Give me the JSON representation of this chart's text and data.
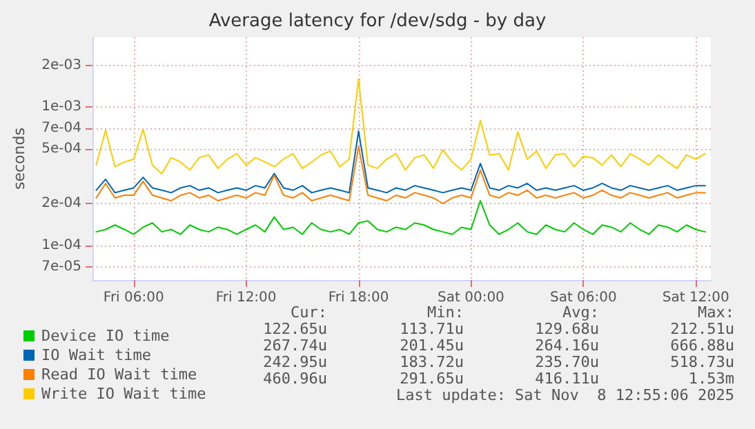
{
  "chart_data": {
    "type": "line",
    "title": "Average latency for /dev/sdg - by day",
    "ylabel": "seconds",
    "log": "y",
    "grid": true,
    "legend": "bottom left",
    "x": [
      "2025-11-07T04:00",
      "2025-11-07T04:30",
      "2025-11-07T05:00",
      "2025-11-07T05:30",
      "2025-11-07T06:00",
      "2025-11-07T06:30",
      "2025-11-07T07:00",
      "2025-11-07T07:30",
      "2025-11-07T08:00",
      "2025-11-07T08:30",
      "2025-11-07T09:00",
      "2025-11-07T09:30",
      "2025-11-07T10:00",
      "2025-11-07T10:30",
      "2025-11-07T11:00",
      "2025-11-07T11:30",
      "2025-11-07T12:00",
      "2025-11-07T12:30",
      "2025-11-07T13:00",
      "2025-11-07T13:30",
      "2025-11-07T14:00",
      "2025-11-07T14:30",
      "2025-11-07T15:00",
      "2025-11-07T15:30",
      "2025-11-07T16:00",
      "2025-11-07T16:30",
      "2025-11-07T17:00",
      "2025-11-07T17:30",
      "2025-11-07T18:00",
      "2025-11-07T18:30",
      "2025-11-07T19:00",
      "2025-11-07T19:30",
      "2025-11-07T20:00",
      "2025-11-07T20:30",
      "2025-11-07T21:00",
      "2025-11-07T21:30",
      "2025-11-07T22:00",
      "2025-11-07T22:30",
      "2025-11-07T23:00",
      "2025-11-07T23:30",
      "2025-11-08T00:00",
      "2025-11-08T00:30",
      "2025-11-08T01:00",
      "2025-11-08T01:30",
      "2025-11-08T02:00",
      "2025-11-08T02:30",
      "2025-11-08T03:00",
      "2025-11-08T03:30",
      "2025-11-08T04:00",
      "2025-11-08T04:30",
      "2025-11-08T05:00",
      "2025-11-08T05:30",
      "2025-11-08T06:00",
      "2025-11-08T06:30",
      "2025-11-08T07:00",
      "2025-11-08T07:30",
      "2025-11-08T08:00",
      "2025-11-08T08:30",
      "2025-11-08T09:00",
      "2025-11-08T09:30",
      "2025-11-08T10:00",
      "2025-11-08T10:30",
      "2025-11-08T11:00",
      "2025-11-08T11:30",
      "2025-11-08T12:00",
      "2025-11-08T12:30"
    ],
    "xlim": [
      "2025-11-07T03:48",
      "2025-11-08T12:48"
    ],
    "xticks": [
      {
        "value": "2025-11-07T06:00",
        "label": "Fri 06:00"
      },
      {
        "value": "2025-11-07T12:00",
        "label": "Fri 12:00"
      },
      {
        "value": "2025-11-07T18:00",
        "label": "Fri 18:00"
      },
      {
        "value": "2025-11-08T00:00",
        "label": "Sat 00:00"
      },
      {
        "value": "2025-11-08T06:00",
        "label": "Sat 06:00"
      },
      {
        "value": "2025-11-08T12:00",
        "label": "Sat 12:00"
      }
    ],
    "ylim": [
      5.6e-05,
      0.0032
    ],
    "yticks": [
      {
        "value": 7e-05,
        "label": "7e-05"
      },
      {
        "value": 0.0001,
        "label": "1e-04"
      },
      {
        "value": 0.0002,
        "label": "2e-04"
      },
      {
        "value": 0.0005,
        "label": "5e-04"
      },
      {
        "value": 0.0007,
        "label": "7e-04"
      },
      {
        "value": 0.001,
        "label": "1e-03"
      },
      {
        "value": 0.002,
        "label": "2e-03"
      }
    ],
    "series": [
      {
        "name": "Device IO time",
        "color": "#00cc00",
        "values": [
          0.000125,
          0.00013,
          0.00014,
          0.00013,
          0.00012,
          0.000135,
          0.000145,
          0.000125,
          0.00013,
          0.00012,
          0.00014,
          0.00013,
          0.000125,
          0.000135,
          0.00013,
          0.00012,
          0.00013,
          0.00014,
          0.000125,
          0.00016,
          0.00013,
          0.000135,
          0.00012,
          0.000145,
          0.00013,
          0.000125,
          0.00013,
          0.00012,
          0.000145,
          0.00015,
          0.00013,
          0.000125,
          0.000135,
          0.00013,
          0.000145,
          0.00014,
          0.00013,
          0.000125,
          0.00012,
          0.000135,
          0.00013,
          0.00021,
          0.00014,
          0.00012,
          0.00013,
          0.000145,
          0.000125,
          0.00012,
          0.00014,
          0.00013,
          0.000125,
          0.000145,
          0.00013,
          0.00012,
          0.00014,
          0.000135,
          0.000125,
          0.000145,
          0.00013,
          0.00012,
          0.00014,
          0.000135,
          0.000125,
          0.00014,
          0.00013,
          0.000125
        ]
      },
      {
        "name": "IO Wait time",
        "color": "#0066b3",
        "values": [
          0.00025,
          0.0003,
          0.00024,
          0.00025,
          0.00026,
          0.00031,
          0.00026,
          0.00025,
          0.00024,
          0.00026,
          0.00027,
          0.00025,
          0.00026,
          0.00024,
          0.00025,
          0.00026,
          0.00025,
          0.00027,
          0.00026,
          0.00033,
          0.00026,
          0.00025,
          0.00027,
          0.00024,
          0.00025,
          0.00026,
          0.00025,
          0.00024,
          0.00067,
          0.00026,
          0.00025,
          0.00024,
          0.00026,
          0.00025,
          0.00027,
          0.00026,
          0.00025,
          0.00024,
          0.00025,
          0.00026,
          0.00025,
          0.00039,
          0.00026,
          0.00025,
          0.00027,
          0.00026,
          0.00028,
          0.00025,
          0.00026,
          0.00025,
          0.00026,
          0.00027,
          0.00025,
          0.00026,
          0.00028,
          0.00026,
          0.00025,
          0.00027,
          0.00026,
          0.00025,
          0.00026,
          0.00027,
          0.00025,
          0.00026,
          0.00027,
          0.00027
        ]
      },
      {
        "name": "Read IO Wait time",
        "color": "#ff8000",
        "values": [
          0.00022,
          0.00028,
          0.00022,
          0.00023,
          0.00023,
          0.00029,
          0.00023,
          0.00022,
          0.00021,
          0.00023,
          0.00024,
          0.00022,
          0.00023,
          0.00021,
          0.00022,
          0.00023,
          0.00022,
          0.00024,
          0.00023,
          0.00032,
          0.00023,
          0.00022,
          0.00024,
          0.00021,
          0.00022,
          0.00023,
          0.00022,
          0.00021,
          0.00052,
          0.00023,
          0.00022,
          0.00021,
          0.00023,
          0.00022,
          0.00024,
          0.00023,
          0.00022,
          0.0002,
          0.00022,
          0.00023,
          0.00022,
          0.00035,
          0.00023,
          0.00022,
          0.00024,
          0.00023,
          0.00025,
          0.00022,
          0.00023,
          0.00022,
          0.00023,
          0.00024,
          0.00022,
          0.00023,
          0.00025,
          0.00023,
          0.00022,
          0.00024,
          0.00023,
          0.00022,
          0.00023,
          0.00024,
          0.00022,
          0.00023,
          0.00024,
          0.00024
        ]
      },
      {
        "name": "Write IO Wait time",
        "color": "#ffcc00",
        "values": [
          0.00038,
          0.00068,
          0.00037,
          0.0004,
          0.00042,
          0.00069,
          0.00038,
          0.00033,
          0.00043,
          0.0004,
          0.00035,
          0.00043,
          0.00045,
          0.00036,
          0.00042,
          0.00046,
          0.00038,
          0.00043,
          0.0004,
          0.00037,
          0.00042,
          0.00046,
          0.00036,
          0.0004,
          0.00045,
          0.00048,
          0.00037,
          0.00042,
          0.0016,
          0.00038,
          0.00036,
          0.00042,
          0.00046,
          0.00035,
          0.00043,
          0.00045,
          0.00036,
          0.00049,
          0.0004,
          0.00035,
          0.00042,
          0.0008,
          0.00045,
          0.00046,
          0.00035,
          0.00066,
          0.00042,
          0.00048,
          0.00036,
          0.00045,
          0.00046,
          0.00037,
          0.00044,
          0.00043,
          0.00038,
          0.00045,
          0.00037,
          0.00046,
          0.00042,
          0.00038,
          0.00045,
          0.0004,
          0.00036,
          0.00045,
          0.00042,
          0.00046
        ]
      }
    ],
    "annotations": [
      "Cur:",
      "Min:",
      "Avg:",
      "Max:",
      "122.65u",
      "113.71u",
      "129.68u",
      "212.51u",
      "267.74u",
      "201.45u",
      "264.16u",
      "666.88u",
      "242.95u",
      "183.72u",
      "235.70u",
      "518.73u",
      "460.96u",
      "291.65u",
      "416.11u",
      "1.53m",
      "Last update: Sat Nov  8 12:55:06 2025"
    ]
  }
}
